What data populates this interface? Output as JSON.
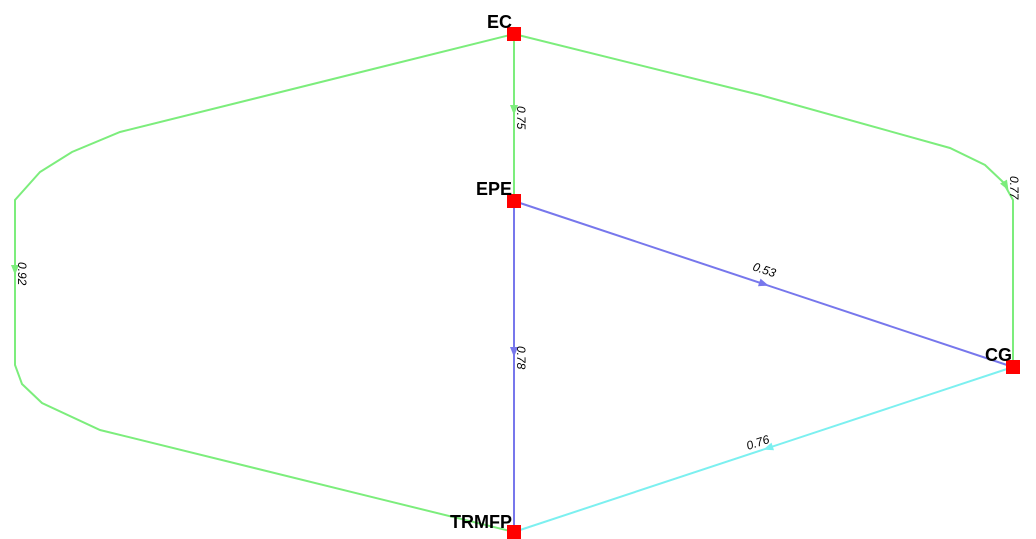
{
  "nodes": [
    {
      "label": "EC"
    },
    {
      "label": "EPE"
    },
    {
      "label": "CG"
    },
    {
      "label": "TRMFP"
    }
  ],
  "edges": [
    {
      "label": "0.75",
      "color": "#7ced7c"
    },
    {
      "label": "0.77",
      "color": "#7ced7c"
    },
    {
      "label": "0.92",
      "color": "#7ced7c"
    },
    {
      "label": "0.53",
      "color": "#7777ec"
    },
    {
      "label": "0.78",
      "color": "#7777ec"
    },
    {
      "label": "0.76",
      "color": "#7cf0f0"
    }
  ]
}
